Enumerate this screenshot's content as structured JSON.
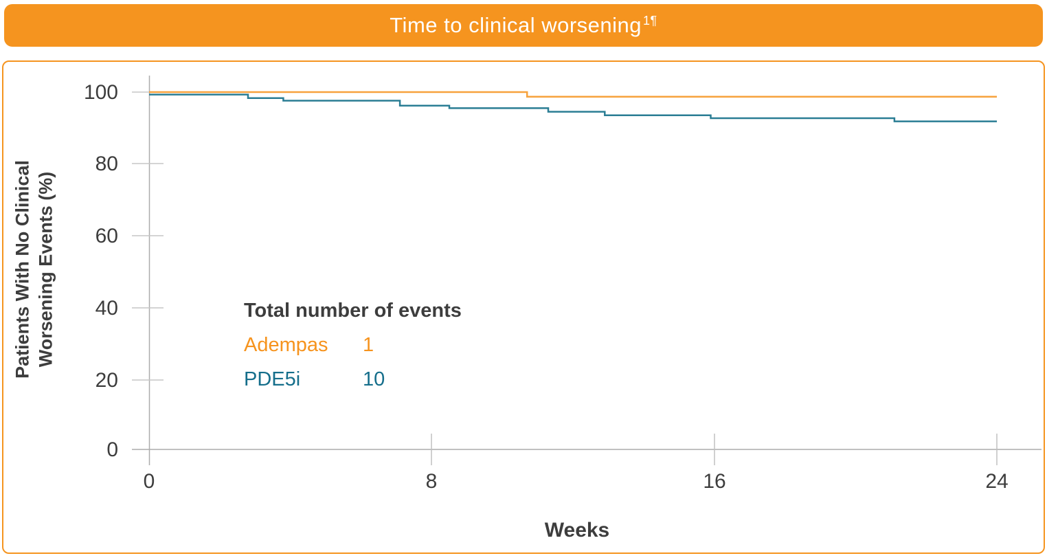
{
  "header": {
    "title": "Time to clinical worsening",
    "superscript": "1¶"
  },
  "colors": {
    "banner_orange": "#f5941f",
    "panel_border_orange": "#f5941f",
    "adempas_line": "#f7a23c",
    "adempas_text": "#f6931d",
    "pde5i_line": "#2a7d94",
    "pde5i_text": "#156e8b",
    "axis_gray": "#acacac",
    "tick_gray": "#c6c6c6",
    "text_dark": "#3d3d3d"
  },
  "chart_data": {
    "type": "line",
    "subtype": "kaplan-meier-step",
    "title": "Time to clinical worsening",
    "xlabel": "Weeks",
    "ylabel": "Patients With No Clinical Worsening Events (%)",
    "ylabel_line1": "Patients With No Clinical",
    "ylabel_line2": "Worsening Events (%)",
    "xlim": [
      0,
      24
    ],
    "ylim": [
      0,
      100
    ],
    "xticks": [
      0,
      8,
      16,
      24
    ],
    "yticks": [
      100,
      80,
      60,
      40,
      20,
      0
    ],
    "grid": false,
    "legend_position": "none",
    "series": [
      {
        "name": "Adempas",
        "color": "#f7a23c",
        "start_pct": 100,
        "steps": [
          [
            10.7,
            98.7
          ]
        ],
        "end_week": 24,
        "end_pct": 98.7,
        "total_events": 1
      },
      {
        "name": "PDE5i",
        "color": "#2a7d94",
        "start_pct": 99.3,
        "steps": [
          [
            2.8,
            98.3
          ],
          [
            3.8,
            97.6
          ],
          [
            7.1,
            96.2
          ],
          [
            8.5,
            95.5
          ],
          [
            11.3,
            94.5
          ],
          [
            12.9,
            93.5
          ],
          [
            15.9,
            92.7
          ],
          [
            21.1,
            91.8
          ]
        ],
        "end_week": 24,
        "end_pct": 91.8,
        "total_events": 10
      }
    ],
    "annotation": {
      "title": "Total number of events",
      "rows": [
        {
          "label": "Adempas",
          "value": "1"
        },
        {
          "label": "PDE5i",
          "value": "10"
        }
      ]
    }
  }
}
